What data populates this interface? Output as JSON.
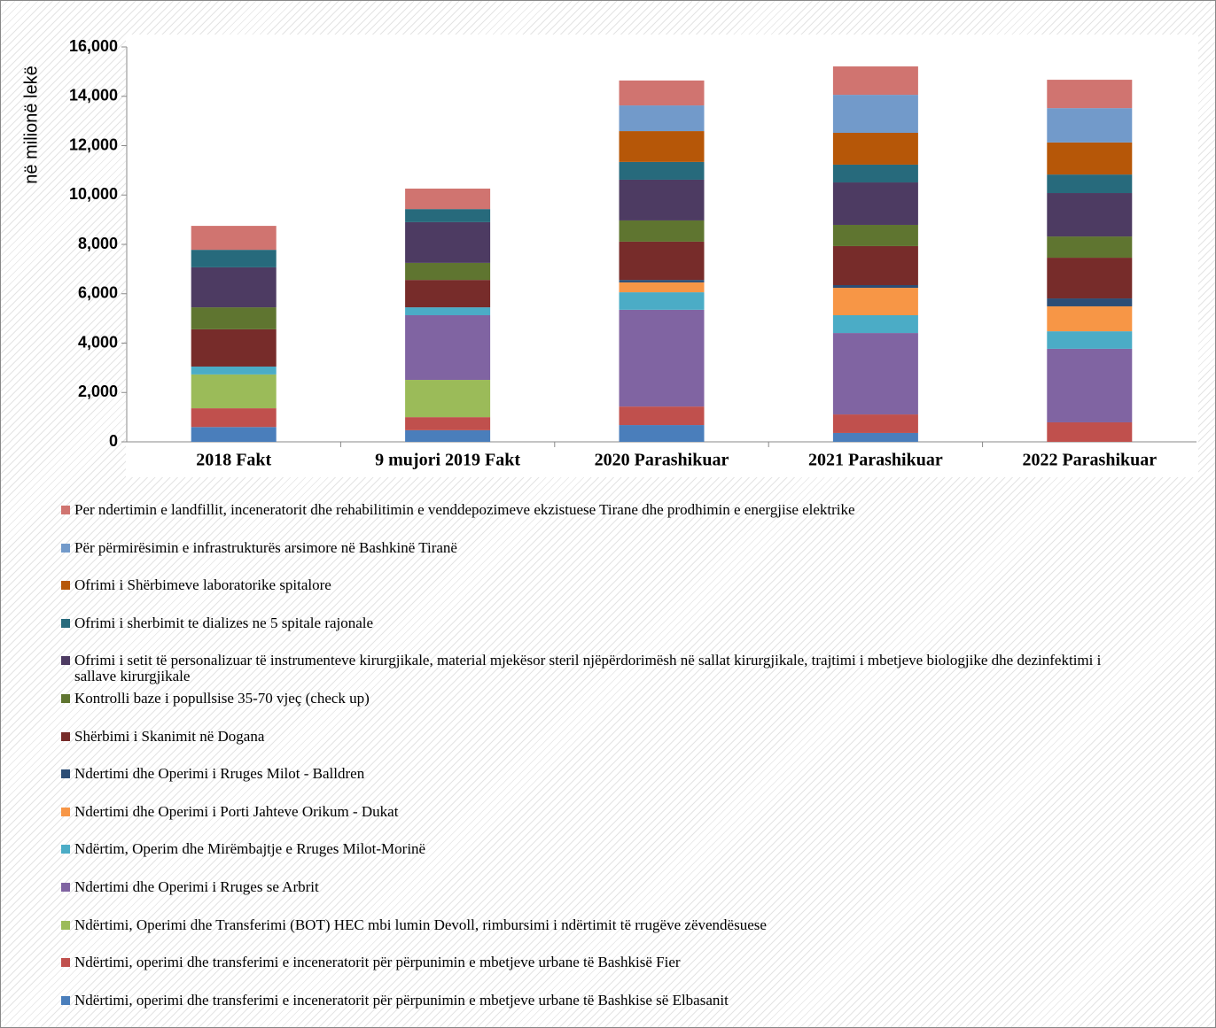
{
  "chart_data": {
    "type": "stacked_bar",
    "y_label": "në milionë lekë",
    "categories": [
      "2018 Fakt",
      "9 mujori 2019 Fakt",
      "2020 Parashikuar",
      "2021 Parashikuar",
      "2022 Parashikuar"
    ],
    "ylim": [
      0,
      16000
    ],
    "yticks": [
      {
        "value": 0,
        "label": "0"
      },
      {
        "value": 2000,
        "label": "2,000"
      },
      {
        "value": 4000,
        "label": "4,000"
      },
      {
        "value": 6000,
        "label": "6,000"
      },
      {
        "value": 8000,
        "label": "8,000"
      },
      {
        "value": 10000,
        "label": "10,000"
      },
      {
        "value": 12000,
        "label": "12,000"
      },
      {
        "value": 14000,
        "label": "14,000"
      },
      {
        "value": 16000,
        "label": "16,000"
      }
    ],
    "series": [
      {
        "name": "Ndërtimi, operimi dhe transferimi e inceneratorit për përpunimin e mbetjeve urbane të Bashkise së Elbasanit",
        "color": "#4a7ebb",
        "values": [
          600,
          470,
          680,
          360,
          0
        ]
      },
      {
        "name": "Ndërtimi, operimi dhe transferimi e inceneratorit për përpunimin e mbetjeve urbane të Bashkisë Fier",
        "color": "#c0504d",
        "values": [
          760,
          530,
          750,
          750,
          790
        ]
      },
      {
        "name": "Ndërtimi, Operimi dhe Transferimi (BOT) HEC mbi lumin Devoll, rimbursimi i ndërtimit të rrugëve zëvendësuese",
        "color": "#9bbb59",
        "values": [
          1370,
          1510,
          0,
          0,
          0
        ]
      },
      {
        "name": "Ndertimi dhe Operimi i Rruges se Arbrit",
        "color": "#8064a2",
        "values": [
          0,
          2620,
          3920,
          3300,
          2980
        ]
      },
      {
        "name": "Ndërtim, Operim dhe Mirëmbajtje e Rruges Milot-Morinë",
        "color": "#4bacc6",
        "values": [
          320,
          320,
          710,
          720,
          710
        ]
      },
      {
        "name": "Ndertimi dhe Operimi i Porti Jahteve Orikum - Dukat",
        "color": "#f79646",
        "values": [
          0,
          0,
          400,
          1110,
          1010
        ]
      },
      {
        "name": "Ndertimi dhe Operimi i Rruges Milot - Balldren",
        "color": "#2c4d75",
        "values": [
          0,
          0,
          100,
          110,
          320
        ]
      },
      {
        "name": "Shërbimi i Skanimit në Dogana",
        "color": "#772c2a",
        "values": [
          1510,
          1110,
          1550,
          1580,
          1650
        ]
      },
      {
        "name": "Kontrolli baze i popullsise 35-70 vjeç (check up)",
        "color": "#5f7530",
        "values": [
          890,
          690,
          860,
          860,
          860
        ]
      },
      {
        "name": "Ofrimi i setit të personalizuar të instrumenteve kirurgjikale, material mjekësor steril njëpërdorimësh në sallat kirurgjikale, trajtimi i mbetjeve biologjike dhe dezinfektimi i sallave kirurgjikale",
        "color": "#4d3b62",
        "values": [
          1620,
          1650,
          1650,
          1720,
          1760
        ]
      },
      {
        "name": "Ofrimi i sherbimit te dializes ne 5 spitale rajonale",
        "color": "#276a7c",
        "values": [
          710,
          530,
          720,
          720,
          750
        ]
      },
      {
        "name": "Ofrimi i Shërbimeve laboratorike spitalore",
        "color": "#b65708",
        "values": [
          0,
          0,
          1250,
          1290,
          1300
        ]
      },
      {
        "name": "Për përmirësimin e infrastrukturës arsimore në Bashkinë Tiranë",
        "color": "#729aca",
        "values": [
          0,
          0,
          1040,
          1540,
          1390
        ]
      },
      {
        "name": "Per ndertimin e landfillit, inceneratorit dhe rehabilitimin e venddepozimeve ekzistuese Tirane dhe prodhimin e energjise elektrike",
        "color": "#d07470",
        "values": [
          970,
          830,
          1010,
          1150,
          1150
        ]
      }
    ]
  }
}
